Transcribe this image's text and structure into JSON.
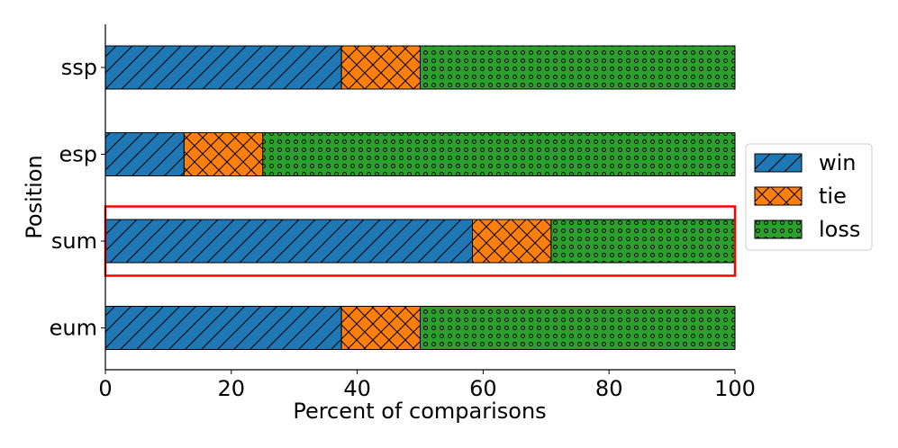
{
  "chart_data": {
    "type": "bar",
    "orientation": "horizontal",
    "stacked": true,
    "title": "",
    "xlabel": "Percent of comparisons",
    "ylabel": "Position",
    "xlim": [
      0,
      100
    ],
    "xticks": [
      "0",
      "20",
      "40",
      "60",
      "80",
      "100"
    ],
    "categories": [
      "ssp",
      "esp",
      "sum",
      "eum"
    ],
    "series": [
      {
        "name": "win",
        "color": "#1f77b4",
        "hatch": "diagonal",
        "values": [
          37.5,
          12.5,
          58.3,
          37.5
        ]
      },
      {
        "name": "tie",
        "color": "#ff7f0e",
        "hatch": "cross",
        "values": [
          12.5,
          12.5,
          12.5,
          12.5
        ]
      },
      {
        "name": "loss",
        "color": "#2ca02c",
        "hatch": "dots",
        "values": [
          50,
          75,
          29.2,
          50
        ]
      }
    ],
    "highlighted_category": "sum",
    "highlight_color": "#ff0000",
    "legend": {
      "placement": "center-right",
      "entries": [
        "win",
        "tie",
        "loss"
      ]
    },
    "grid": false
  }
}
